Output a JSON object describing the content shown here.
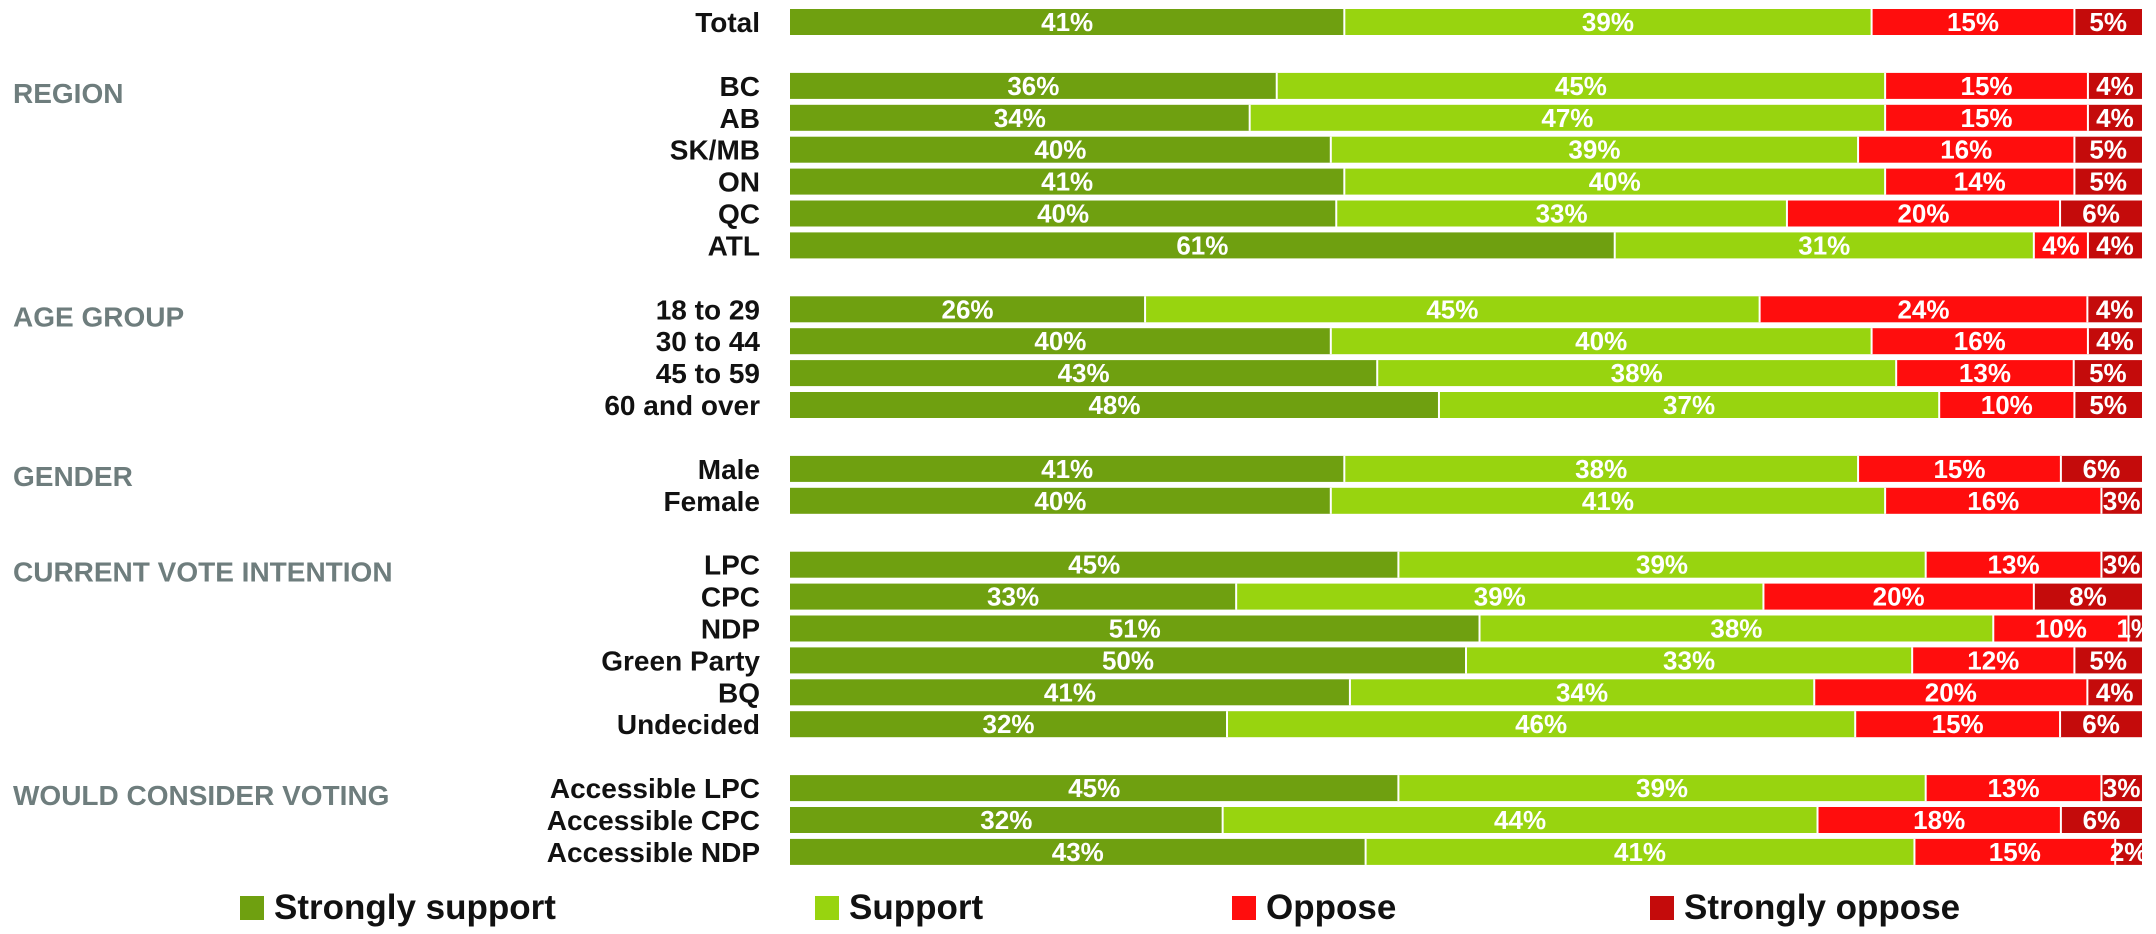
{
  "chart_data": {
    "type": "bar",
    "orientation": "horizontal-stacked-100",
    "legend_position": "bottom",
    "title": "",
    "xlabel": "",
    "ylabel": "",
    "series": [
      {
        "name": "Strongly support",
        "color": "#6fa010"
      },
      {
        "name": "Support",
        "color": "#98d40f"
      },
      {
        "name": "Oppose",
        "color": "#ff0d0d"
      },
      {
        "name": "Strongly oppose",
        "color": "#c40b0b"
      }
    ],
    "groups": [
      {
        "label": "",
        "rows": [
          {
            "label": "Total",
            "values": [
              41,
              39,
              15,
              5
            ],
            "labels": [
              "41%",
              "39%",
              "15%",
              "5%"
            ]
          }
        ]
      },
      {
        "label": "REGION",
        "rows": [
          {
            "label": "BC",
            "values": [
              36,
              45,
              15,
              4
            ],
            "labels": [
              "36%",
              "45%",
              "15%",
              "4%"
            ]
          },
          {
            "label": "AB",
            "values": [
              34,
              47,
              15,
              4
            ],
            "labels": [
              "34%",
              "47%",
              "15%",
              "4%"
            ]
          },
          {
            "label": "SK/MB",
            "values": [
              40,
              39,
              16,
              5
            ],
            "labels": [
              "40%",
              "39%",
              "16%",
              "5%"
            ]
          },
          {
            "label": "ON",
            "values": [
              41,
              40,
              14,
              5
            ],
            "labels": [
              "41%",
              "40%",
              "14%",
              "5%"
            ]
          },
          {
            "label": "QC",
            "values": [
              40,
              33,
              20,
              6
            ],
            "labels": [
              "40%",
              "33%",
              "20%",
              "6%"
            ]
          },
          {
            "label": "ATL",
            "values": [
              61,
              31,
              4,
              4
            ],
            "labels": [
              "61%",
              "31%",
              "4%",
              "4%"
            ]
          }
        ]
      },
      {
        "label": "AGE GROUP",
        "rows": [
          {
            "label": "18 to 29",
            "values": [
              26,
              45,
              24,
              4
            ],
            "labels": [
              "26%",
              "45%",
              "24%",
              "4%"
            ]
          },
          {
            "label": "30 to 44",
            "values": [
              40,
              40,
              16,
              4
            ],
            "labels": [
              "40%",
              "40%",
              "16%",
              "4%"
            ]
          },
          {
            "label": "45 to 59",
            "values": [
              43,
              38,
              13,
              5
            ],
            "labels": [
              "43%",
              "38%",
              "13%",
              "5%"
            ]
          },
          {
            "label": "60 and over",
            "values": [
              48,
              37,
              10,
              5
            ],
            "labels": [
              "48%",
              "37%",
              "10%",
              "5%"
            ]
          }
        ]
      },
      {
        "label": "GENDER",
        "rows": [
          {
            "label": "Male",
            "values": [
              41,
              38,
              15,
              6
            ],
            "labels": [
              "41%",
              "38%",
              "15%",
              "6%"
            ]
          },
          {
            "label": "Female",
            "values": [
              40,
              41,
              16,
              3
            ],
            "labels": [
              "40%",
              "41%",
              "16%",
              "3%"
            ]
          }
        ]
      },
      {
        "label": "CURRENT VOTE INTENTION",
        "rows": [
          {
            "label": "LPC",
            "values": [
              45,
              39,
              13,
              3
            ],
            "labels": [
              "45%",
              "39%",
              "13%",
              "3%"
            ]
          },
          {
            "label": "CPC",
            "values": [
              33,
              39,
              20,
              8
            ],
            "labels": [
              "33%",
              "39%",
              "20%",
              "8%"
            ]
          },
          {
            "label": "NDP",
            "values": [
              51,
              38,
              10,
              1
            ],
            "labels": [
              "51%",
              "38%",
              "10%",
              "1%"
            ]
          },
          {
            "label": "Green Party",
            "values": [
              50,
              33,
              12,
              5
            ],
            "labels": [
              "50%",
              "33%",
              "12%",
              "5%"
            ]
          },
          {
            "label": "BQ",
            "values": [
              41,
              34,
              20,
              4
            ],
            "labels": [
              "41%",
              "34%",
              "20%",
              "4%"
            ]
          },
          {
            "label": "Undecided",
            "values": [
              32,
              46,
              15,
              6
            ],
            "labels": [
              "32%",
              "46%",
              "15%",
              "6%"
            ]
          }
        ]
      },
      {
        "label": "WOULD CONSIDER VOTING",
        "rows": [
          {
            "label": "Accessible LPC",
            "values": [
              45,
              39,
              13,
              3
            ],
            "labels": [
              "45%",
              "39%",
              "13%",
              "3%"
            ]
          },
          {
            "label": "Accessible CPC",
            "values": [
              32,
              44,
              18,
              6
            ],
            "labels": [
              "32%",
              "44%",
              "18%",
              "6%"
            ]
          },
          {
            "label": "Accessible NDP",
            "values": [
              43,
              41,
              15,
              2
            ],
            "labels": [
              "43%",
              "41%",
              "15%",
              "2%"
            ]
          }
        ]
      }
    ]
  }
}
